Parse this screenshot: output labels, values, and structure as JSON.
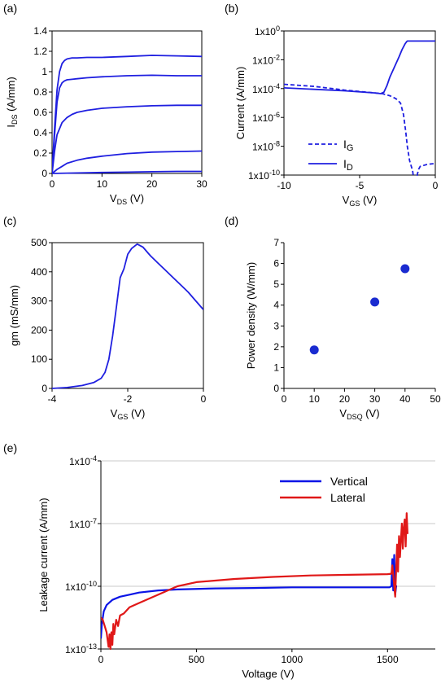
{
  "chart_data": [
    {
      "panel": "(a)",
      "type": "line",
      "xlabel": "V",
      "xlabel_sub": "DS",
      "xunit": " (V)",
      "ylabel": "I",
      "ylabel_sub": "DS",
      "yunit": " (A/mm)",
      "xlim": [
        0,
        30
      ],
      "ylim": [
        0,
        1.4
      ],
      "xticks": [
        0,
        10,
        20,
        30
      ],
      "yticks": [
        0,
        0.2,
        0.4,
        0.6,
        0.8,
        1,
        1.2,
        1.4
      ],
      "ytick_labels": [
        "0",
        "0.2",
        "0.4",
        "0.6",
        "0.8",
        "1",
        "1.2",
        "1.4"
      ],
      "color": "#1f1fe0",
      "series": [
        {
          "x": [
            0,
            0.5,
            1,
            1.5,
            2,
            2.5,
            3,
            4,
            5,
            7,
            10,
            15,
            20,
            25,
            30
          ],
          "y": [
            0,
            0.45,
            0.82,
            1.0,
            1.08,
            1.11,
            1.125,
            1.135,
            1.135,
            1.14,
            1.14,
            1.15,
            1.16,
            1.155,
            1.15
          ]
        },
        {
          "x": [
            0,
            0.5,
            1,
            1.5,
            2,
            2.5,
            3,
            4,
            5,
            7,
            10,
            15,
            20,
            25,
            30
          ],
          "y": [
            0,
            0.38,
            0.7,
            0.84,
            0.89,
            0.91,
            0.92,
            0.925,
            0.93,
            0.94,
            0.95,
            0.96,
            0.965,
            0.96,
            0.96
          ]
        },
        {
          "x": [
            0,
            0.5,
            1,
            2,
            3,
            4,
            5,
            7,
            10,
            15,
            20,
            25,
            30
          ],
          "y": [
            0,
            0.22,
            0.38,
            0.5,
            0.55,
            0.58,
            0.6,
            0.62,
            0.64,
            0.655,
            0.665,
            0.67,
            0.67
          ]
        },
        {
          "x": [
            0,
            1,
            2,
            3,
            5,
            7,
            10,
            15,
            20,
            25,
            30
          ],
          "y": [
            0,
            0.04,
            0.07,
            0.1,
            0.13,
            0.15,
            0.17,
            0.195,
            0.21,
            0.215,
            0.22
          ]
        },
        {
          "x": [
            0,
            5,
            10,
            15,
            20,
            25,
            30
          ],
          "y": [
            0,
            0.005,
            0.01,
            0.013,
            0.017,
            0.02,
            0.02
          ]
        }
      ]
    },
    {
      "panel": "(b)",
      "type": "line",
      "xlabel": "V",
      "xlabel_sub": "GS",
      "xunit": " (V)",
      "ylabel": "Current (A/mm)",
      "xlim": [
        -10,
        0
      ],
      "ylim_log10": [
        -10,
        0
      ],
      "xticks": [
        -10,
        -5,
        0
      ],
      "ytick_exponents": [
        -10,
        -8,
        -6,
        -4,
        -2,
        0
      ],
      "color": "#1f1fe0",
      "legend_position": "lower-left",
      "series": [
        {
          "name_main": "I",
          "name_sub": "G",
          "dash": true,
          "x": [
            -10,
            -8,
            -6,
            -4,
            -3.5,
            -3,
            -2.6,
            -2.3,
            -2.1,
            -1.95,
            -1.85,
            -1.7,
            -1.5,
            -1.4,
            -1.3,
            -1.2,
            -1.1,
            -1.0,
            -0.5,
            0
          ],
          "log10_y": [
            -3.7,
            -3.85,
            -4.1,
            -4.3,
            -4.35,
            -4.5,
            -4.7,
            -5.0,
            -5.8,
            -7.0,
            -8.0,
            -9.0,
            -9.7,
            -10.5,
            -10.5,
            -10.0,
            -9.6,
            -9.4,
            -9.25,
            -9.2
          ]
        },
        {
          "name_main": "I",
          "name_sub": "D",
          "dash": false,
          "x": [
            -10,
            -8,
            -6,
            -4,
            -3.6,
            -3.4,
            -3.2,
            -3.0,
            -2.7,
            -2.4,
            -2.2,
            -2.0,
            -1.9,
            -1.85,
            -1.5,
            -1,
            -0.5,
            0
          ],
          "log10_y": [
            -3.95,
            -4.05,
            -4.15,
            -4.3,
            -4.35,
            -4.25,
            -3.8,
            -3.2,
            -2.5,
            -1.8,
            -1.3,
            -0.9,
            -0.75,
            -0.7,
            -0.7,
            -0.7,
            -0.7,
            -0.7
          ]
        }
      ]
    },
    {
      "panel": "(c)",
      "type": "line",
      "xlabel": "V",
      "xlabel_sub": "GS",
      "xunit": " (V)",
      "ylabel": "gm (mS/mm)",
      "xlim": [
        -4,
        0
      ],
      "ylim": [
        0,
        500
      ],
      "xticks": [
        -4,
        -2,
        0
      ],
      "yticks": [
        0,
        100,
        200,
        300,
        400,
        500
      ],
      "color": "#1f1fe0",
      "series": [
        {
          "x": [
            -4,
            -3.6,
            -3.2,
            -2.9,
            -2.7,
            -2.6,
            -2.5,
            -2.4,
            -2.3,
            -2.2,
            -2.1,
            -2.0,
            -1.9,
            -1.8,
            -1.75,
            -1.7,
            -1.6,
            -1.4,
            -1.2,
            -1.0,
            -0.8,
            -0.6,
            -0.4,
            -0.2,
            0
          ],
          "y": [
            0,
            3,
            10,
            20,
            35,
            55,
            100,
            180,
            280,
            380,
            410,
            460,
            480,
            490,
            495,
            492,
            485,
            455,
            430,
            405,
            380,
            355,
            330,
            300,
            270
          ]
        }
      ]
    },
    {
      "panel": "(d)",
      "type": "scatter",
      "xlabel": "V",
      "xlabel_sub": "DSQ",
      "xunit": " (V)",
      "ylabel": "Power density (W/mm)",
      "xlim": [
        0,
        50
      ],
      "ylim": [
        0,
        7
      ],
      "xticks": [
        0,
        10,
        20,
        30,
        40,
        50
      ],
      "yticks": [
        0,
        1,
        2,
        3,
        4,
        5,
        6,
        7
      ],
      "color": "#1a2bd0",
      "series": [
        {
          "x": [
            10,
            30,
            40
          ],
          "y": [
            1.85,
            4.15,
            5.75
          ]
        }
      ]
    },
    {
      "panel": "(e)",
      "type": "line",
      "xlabel": "Voltage (V)",
      "ylabel": "Leakage current (A/mm)",
      "xlim": [
        0,
        1750
      ],
      "ylim_log10": [
        -13,
        -4
      ],
      "xticks": [
        0,
        500,
        1000,
        1500
      ],
      "ytick_exponents": [
        -13,
        -10,
        -7,
        -4
      ],
      "grid": true,
      "legend_position": "top-right",
      "series": [
        {
          "name": "Vertical",
          "color": "#0a14e6",
          "x": [
            0,
            5,
            15,
            30,
            60,
            100,
            150,
            200,
            300,
            400,
            600,
            800,
            1000,
            1200,
            1400,
            1510,
            1520,
            1525,
            1530,
            1535,
            1540,
            1545,
            1550
          ],
          "log10_y": [
            -12.5,
            -11.8,
            -11.2,
            -10.9,
            -10.65,
            -10.5,
            -10.4,
            -10.3,
            -10.2,
            -10.15,
            -10.1,
            -10.08,
            -10.05,
            -10.05,
            -10.05,
            -10.05,
            -10.0,
            -8.7,
            -10.2,
            -8.5,
            -10.4,
            -10.0,
            -10.0
          ]
        },
        {
          "name": "Lateral",
          "color": "#e01818",
          "x": [
            0,
            10,
            20,
            30,
            40,
            45,
            50,
            55,
            60,
            65,
            70,
            80,
            90,
            100,
            120,
            150,
            200,
            300,
            400,
            500,
            700,
            900,
            1100,
            1300,
            1500,
            1520,
            1525,
            1530,
            1540,
            1545,
            1550,
            1555,
            1560,
            1565,
            1570,
            1575,
            1580,
            1585,
            1590,
            1595,
            1600,
            1605
          ],
          "log10_y": [
            -11.5,
            -11.6,
            -11.9,
            -12.2,
            -12.9,
            -12.3,
            -13.0,
            -12.2,
            -12.8,
            -11.8,
            -12.3,
            -11.6,
            -11.9,
            -11.4,
            -11.3,
            -11.0,
            -10.8,
            -10.4,
            -10.0,
            -9.8,
            -9.65,
            -9.55,
            -9.48,
            -9.45,
            -9.42,
            -9.4,
            -9.0,
            -9.45,
            -10.5,
            -9.2,
            -8.0,
            -9.3,
            -7.6,
            -8.6,
            -7.8,
            -7.0,
            -8.2,
            -7.2,
            -6.8,
            -8.1,
            -6.5,
            -7.5
          ]
        }
      ]
    }
  ]
}
